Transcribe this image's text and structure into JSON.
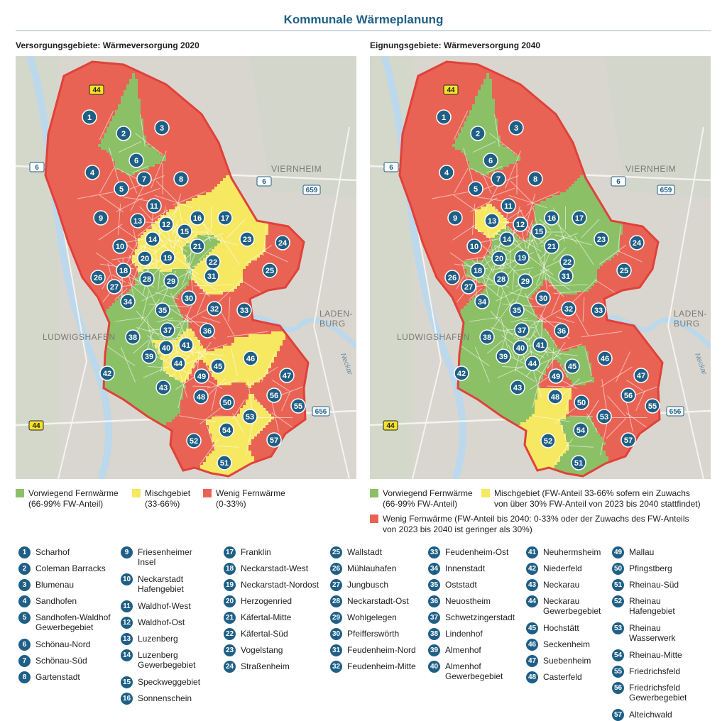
{
  "page_title": "Kommunale Wärmeplanung",
  "maps": [
    {
      "id": "2020",
      "subtitle": "Versorgungsgebiete: Wärmeversorgung 2020",
      "place_labels": [
        "VIERNHEIM",
        "LADEN-",
        "BURG",
        "LUDWIGSHAFEN",
        "Neckar"
      ],
      "road_labels": [
        "44",
        "6",
        "6",
        "659",
        "656",
        "44"
      ],
      "legend": [
        {
          "color": "#8cc067",
          "lines": [
            "Vorwiegend Fernwärme",
            "(66-99% FW-Anteil)"
          ]
        },
        {
          "color": "#f6e861",
          "lines": [
            "Mischgebiet",
            "(33-66%)"
          ]
        },
        {
          "color": "#e96354",
          "lines": [
            "Wenig Fernwärme",
            "(0-33%)"
          ]
        }
      ]
    },
    {
      "id": "2040",
      "subtitle": "Eignungsgebiete: Wärmeversorgung 2040",
      "place_labels": [
        "VIERNHEIM",
        "LADEN-",
        "BURG",
        "LUDWIGSHAFEN",
        "Neckar"
      ],
      "road_labels": [
        "44",
        "6",
        "6",
        "659",
        "656",
        "44"
      ],
      "legend": [
        {
          "color": "#8cc067",
          "lines": [
            "Vorwiegend Fernwärme",
            "(66-99% FW-Anteil)"
          ]
        },
        {
          "color": "#f6e861",
          "lines": [
            "Mischgebiet (FW-Anteil 33-66% sofern ein Zuwachs",
            "von über 30% FW-Anteil von 2023 bis 2040 stattfindet)"
          ]
        },
        {
          "color": "#e96354",
          "lines": [
            "Wenig Fernwärme (FW-Anteil bis 2040: 0-33% oder der Zuwachs des FW-Anteils",
            "von 2023 bis 2040 ist geringer als 30%)"
          ]
        }
      ]
    }
  ],
  "colors": {
    "green": "#8cc067",
    "yellow": "#f6e861",
    "red": "#e96354",
    "badge": "#1f5f86",
    "outline": "#e0413a"
  },
  "districts": [
    {
      "n": "1",
      "name": "Scharhof"
    },
    {
      "n": "2",
      "name": "Coleman Barracks"
    },
    {
      "n": "3",
      "name": "Blumenau"
    },
    {
      "n": "4",
      "name": "Sandhofen"
    },
    {
      "n": "5",
      "name": "Sandhofen-Waldhof Gewerbegebiet"
    },
    {
      "n": "6",
      "name": "Schönau-Nord"
    },
    {
      "n": "7",
      "name": "Schönau-Süd"
    },
    {
      "n": "8",
      "name": "Gartenstadt"
    },
    {
      "n": "9",
      "name": "Friesenheimer Insel"
    },
    {
      "n": "10",
      "name": "Neckarstadt Hafengebiet"
    },
    {
      "n": "11",
      "name": "Waldhof-West"
    },
    {
      "n": "12",
      "name": "Waldhof-Ost"
    },
    {
      "n": "13",
      "name": "Luzenberg"
    },
    {
      "n": "14",
      "name": "Luzenberg Gewerbegebiet"
    },
    {
      "n": "15",
      "name": "Speckweggebiet"
    },
    {
      "n": "16",
      "name": "Sonnenschein"
    },
    {
      "n": "17",
      "name": "Franklin"
    },
    {
      "n": "18",
      "name": "Neckarstadt-West"
    },
    {
      "n": "19",
      "name": "Neckarstadt-Nordost"
    },
    {
      "n": "20",
      "name": "Herzogenried"
    },
    {
      "n": "21",
      "name": "Käfertal-Mitte"
    },
    {
      "n": "22",
      "name": "Käfertal-Süd"
    },
    {
      "n": "23",
      "name": "Vogelstang"
    },
    {
      "n": "24",
      "name": "Straßenheim"
    },
    {
      "n": "25",
      "name": "Wallstadt"
    },
    {
      "n": "26",
      "name": "Mühlauhafen"
    },
    {
      "n": "27",
      "name": "Jungbusch"
    },
    {
      "n": "28",
      "name": "Neckarstadt-Ost"
    },
    {
      "n": "29",
      "name": "Wohlgelegen"
    },
    {
      "n": "30",
      "name": "Pfeifferswörth"
    },
    {
      "n": "31",
      "name": "Feudenheim-Nord"
    },
    {
      "n": "32",
      "name": "Feudenheim-Mitte"
    },
    {
      "n": "33",
      "name": "Feudenheim-Ost"
    },
    {
      "n": "34",
      "name": "Innenstadt"
    },
    {
      "n": "35",
      "name": "Oststadt"
    },
    {
      "n": "36",
      "name": "Neuostheim"
    },
    {
      "n": "37",
      "name": "Schwetzingerstadt"
    },
    {
      "n": "38",
      "name": "Lindenhof"
    },
    {
      "n": "39",
      "name": "Almenhof"
    },
    {
      "n": "40",
      "name": "Almenhof Gewerbegebiet"
    },
    {
      "n": "41",
      "name": "Neuhermsheim"
    },
    {
      "n": "42",
      "name": "Niederfeld"
    },
    {
      "n": "43",
      "name": "Neckarau"
    },
    {
      "n": "44",
      "name": "Neckarau Gewerbegebiet"
    },
    {
      "n": "45",
      "name": "Hochstätt"
    },
    {
      "n": "46",
      "name": "Seckenheim"
    },
    {
      "n": "47",
      "name": "Suebenheim"
    },
    {
      "n": "48",
      "name": "Casterfeld"
    },
    {
      "n": "49",
      "name": "Mallau"
    },
    {
      "n": "50",
      "name": "Pfingstberg"
    },
    {
      "n": "51",
      "name": "Rheinau-Süd"
    },
    {
      "n": "52",
      "name": "Rheinau Hafengebiet"
    },
    {
      "n": "53",
      "name": "Rheinau Wasserwerk"
    },
    {
      "n": "54",
      "name": "Rheinau-Mitte"
    },
    {
      "n": "55",
      "name": "Friedrichsfeld"
    },
    {
      "n": "56",
      "name": "Friedrichsfeld Gewerbegebiet"
    },
    {
      "n": "57",
      "name": "Alteichwald"
    }
  ]
}
